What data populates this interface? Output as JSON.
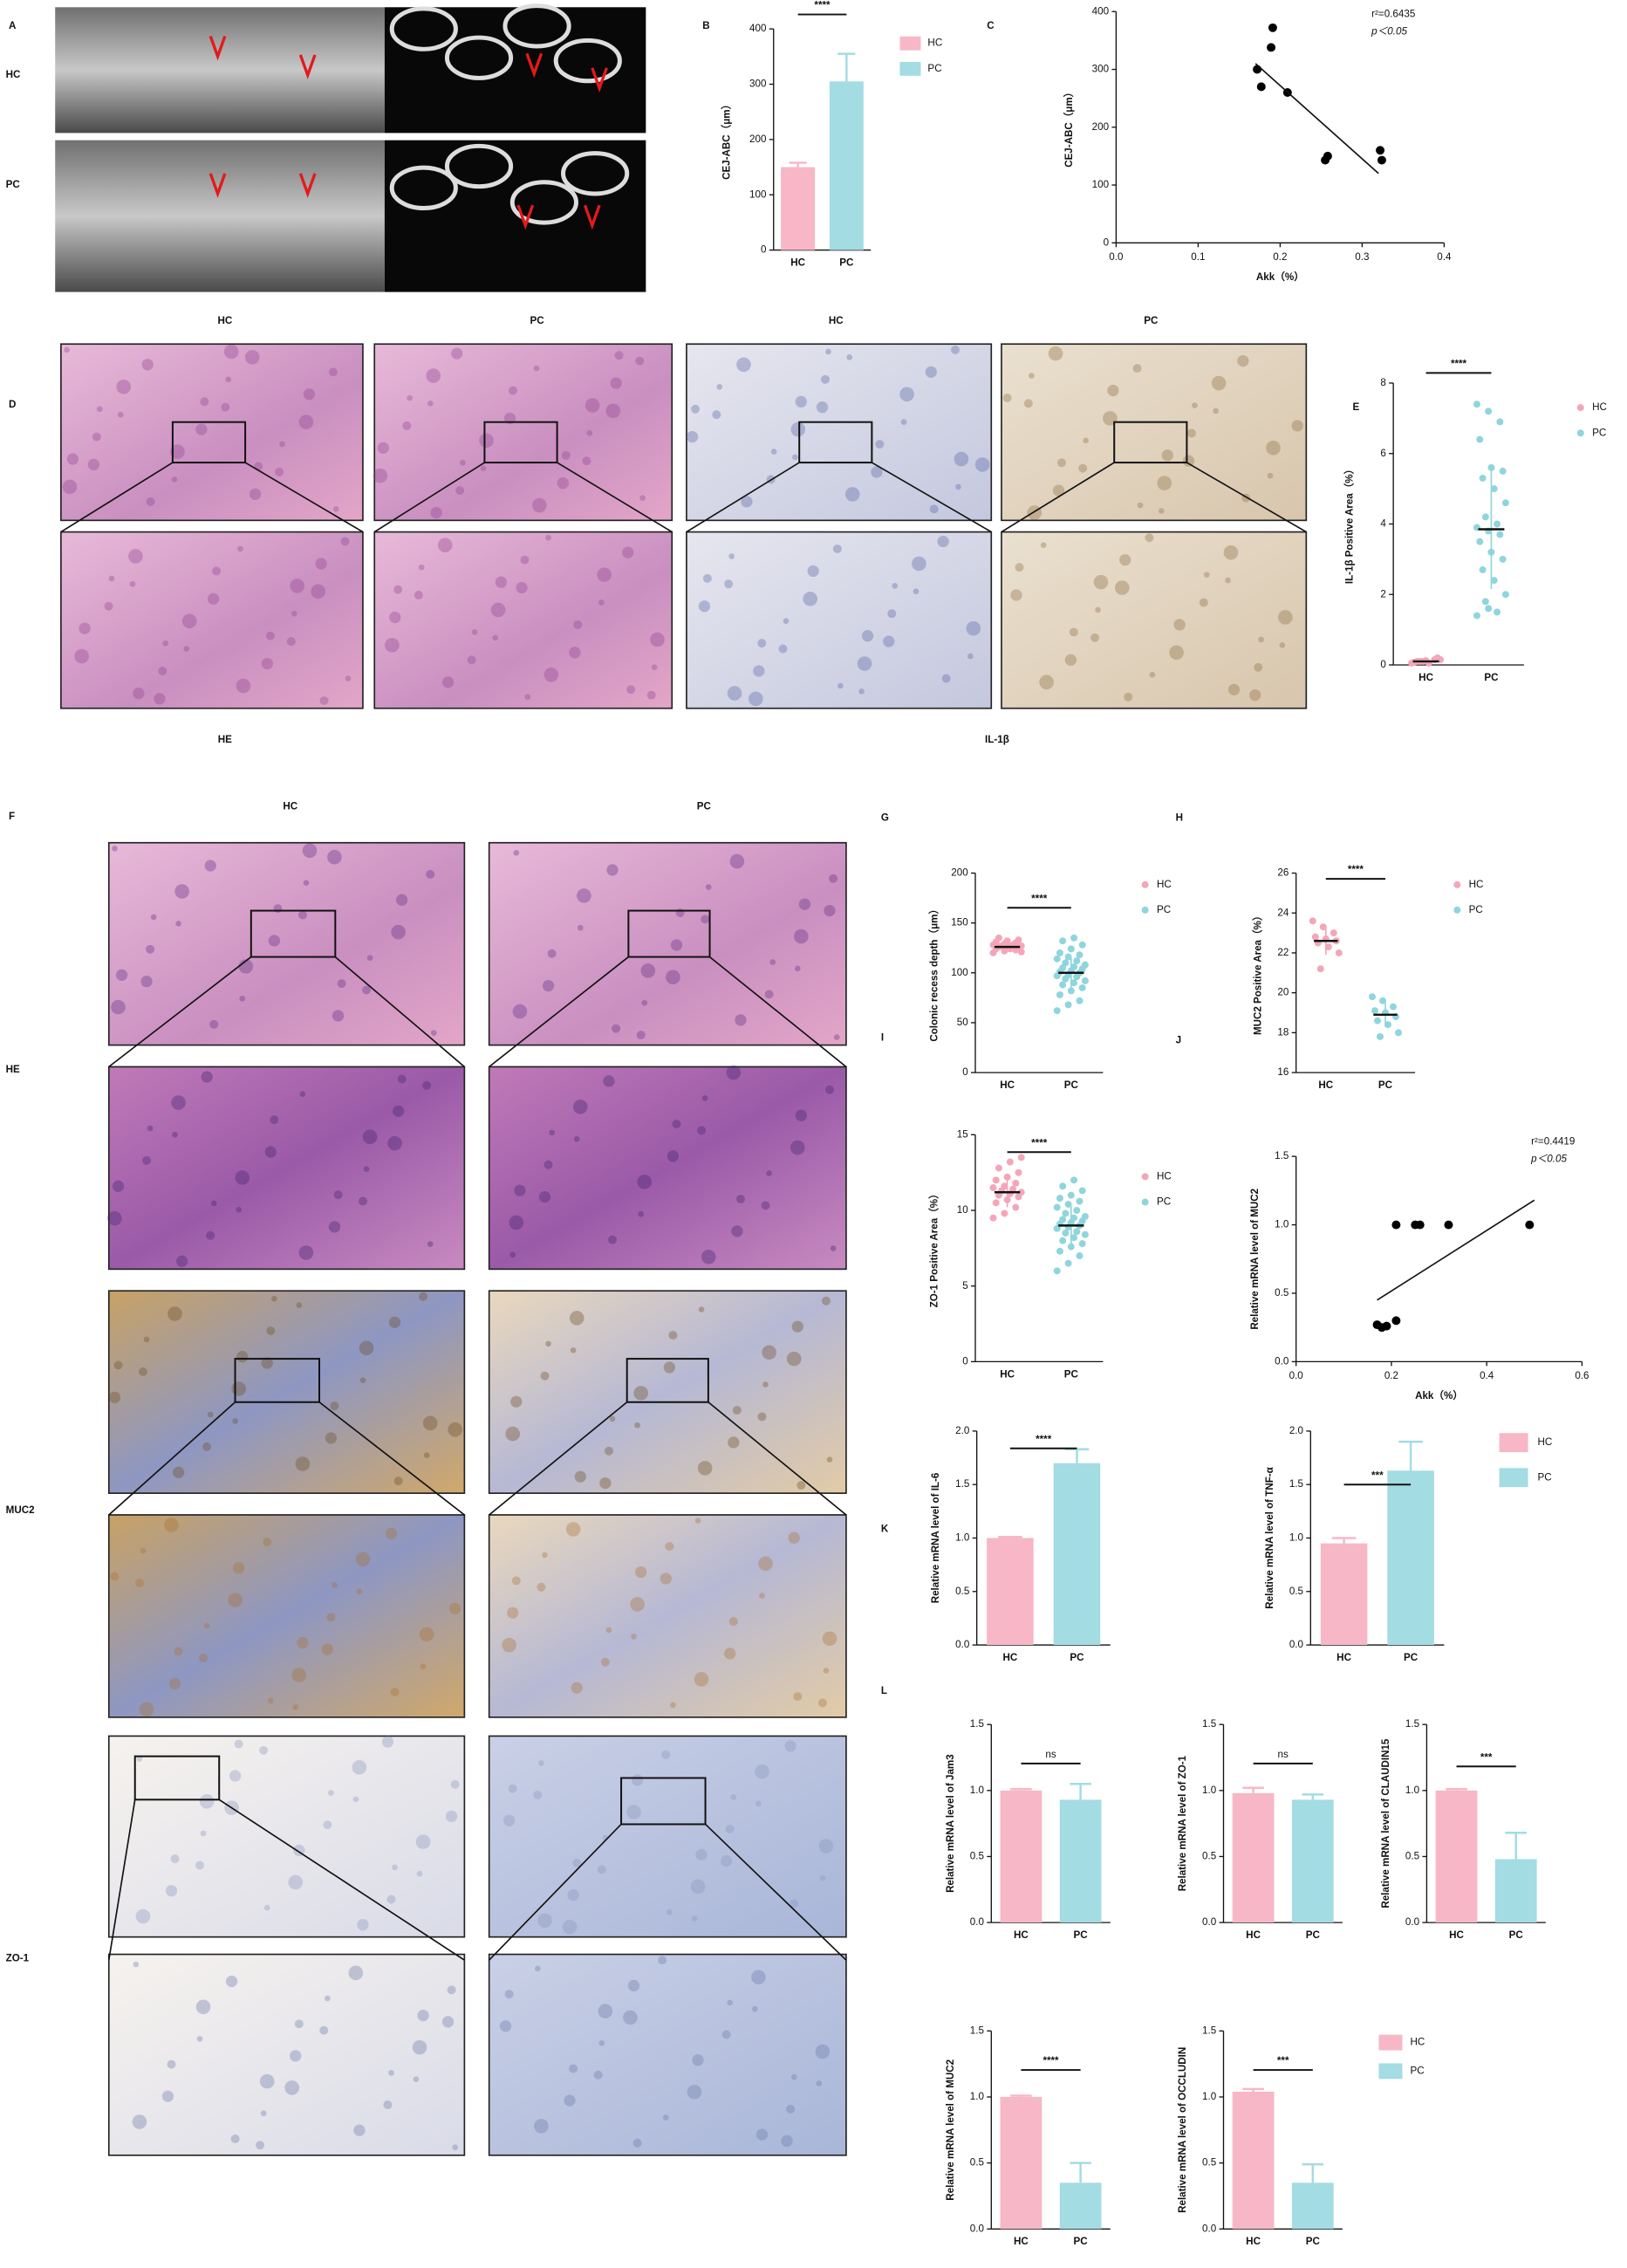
{
  "figure": {
    "panel_letters": [
      "A",
      "B",
      "C",
      "D",
      "E",
      "F",
      "G",
      "H",
      "I",
      "J",
      "K",
      "L"
    ],
    "a_rows": [
      "HC",
      "PC"
    ],
    "d_columns": [
      "HC",
      "PC",
      "HC",
      "PC"
    ],
    "d_stains": [
      "HE",
      "IL-1β"
    ],
    "f_columns": [
      "HC",
      "PC"
    ],
    "f_rows": [
      "HE",
      "MUC2",
      "ZO-1"
    ]
  },
  "chart_data": [
    {
      "type": "bar",
      "y_label": "CEJ-ABC（μm）",
      "categories": [
        "HC",
        "PC"
      ],
      "ylim": [
        0,
        400
      ],
      "yticks": [
        0,
        100,
        200,
        300,
        400
      ],
      "significance": "****",
      "legend": true,
      "series": [
        {
          "name": "HC",
          "color": "#f7b7c6",
          "values": [
            150,
            null
          ],
          "errors": [
            8,
            null
          ]
        },
        {
          "name": "PC",
          "color": "#a3dce2",
          "values": [
            null,
            305
          ],
          "errors": [
            null,
            50
          ]
        }
      ]
    },
    {
      "type": "scatter",
      "y_label": "CEJ-ABC（μm）",
      "x_label": "Akk（%）",
      "xlim": [
        0,
        0.4
      ],
      "xticks": [
        {
          "value": 0,
          "label": "0.0"
        },
        0.1,
        0.2,
        0.3,
        0.4
      ],
      "ylim": [
        0,
        400
      ],
      "yticks": [
        0,
        100,
        200,
        300,
        400
      ],
      "annotations": [
        "r²=0.6435",
        "p＜0.05"
      ],
      "series": [
        {
          "color": "#000000",
          "x": [
            0.172,
            0.191,
            0.189,
            0.177,
            0.209,
            0.255,
            0.258,
            0.322,
            0.324
          ],
          "y": [
            300,
            372,
            338,
            270,
            260,
            143,
            150,
            160,
            143
          ]
        }
      ],
      "fit_x": [
        0.17,
        0.32
      ],
      "fit_y": [
        310,
        120
      ]
    },
    {
      "type": "strip",
      "y_label": "IL-1β Positive Area（%）",
      "categories": [
        "HC",
        "PC"
      ],
      "ylim": [
        0,
        8
      ],
      "yticks": [
        0,
        2,
        4,
        6,
        8
      ],
      "significance": "****",
      "legend": true,
      "series": [
        {
          "name": "HC",
          "color": "#f4a6b8",
          "values": [
            0.05,
            0.1,
            0.15,
            0.08,
            0.12,
            0.2,
            0.1,
            0.05,
            0.15,
            0.1
          ],
          "mean": 0.1,
          "sd": 0.05
        },
        {
          "name": "PC",
          "color": "#8fd5dd",
          "values": [
            7.4,
            7.2,
            6.9,
            6.4,
            5.6,
            5.5,
            5.3,
            5.0,
            4.6,
            4.2,
            4.0,
            3.9,
            3.8,
            3.7,
            3.5,
            3.2,
            3.0,
            2.7,
            2.4,
            2.0,
            1.8,
            1.5,
            1.4,
            1.6
          ],
          "mean": 3.85,
          "sd": 1.7
        }
      ]
    },
    {
      "type": "strip",
      "y_label": "Colonic recess depth（μm）",
      "categories": [
        "HC",
        "PC"
      ],
      "ylim": [
        0,
        200
      ],
      "yticks": [
        0,
        50,
        100,
        150,
        200
      ],
      "significance": "****",
      "legend": true,
      "series": [
        {
          "name": "HC",
          "color": "#f4a6b8",
          "values": [
            120,
            122,
            123,
            124,
            125,
            125,
            126,
            126,
            127,
            127,
            128,
            128,
            129,
            130,
            131,
            132,
            133,
            135,
            124,
            121
          ],
          "mean": 126,
          "sd": 4
        },
        {
          "name": "PC",
          "color": "#8fd5dd",
          "values": [
            62,
            68,
            72,
            78,
            82,
            85,
            88,
            90,
            92,
            94,
            96,
            97,
            98,
            100,
            101,
            102,
            104,
            105,
            106,
            108,
            110,
            112,
            114,
            116,
            118,
            120,
            124,
            128,
            132,
            135
          ],
          "mean": 100,
          "sd": 15
        }
      ]
    },
    {
      "type": "strip",
      "y_label": "MUC2 Positive Area（%）",
      "categories": [
        "HC",
        "PC"
      ],
      "ylim": [
        16,
        26
      ],
      "yticks": [
        16,
        18,
        20,
        22,
        24,
        26
      ],
      "significance": "****",
      "legend": true,
      "series": [
        {
          "name": "HC",
          "color": "#f4a6b8",
          "values": [
            23.6,
            23.3,
            23.0,
            22.8,
            22.7,
            22.6,
            22.5,
            22.3,
            22.0,
            21.2
          ],
          "mean": 22.6,
          "sd": 0.7
        },
        {
          "name": "PC",
          "color": "#8fd5dd",
          "values": [
            19.8,
            19.6,
            19.3,
            19.1,
            19.0,
            18.8,
            18.6,
            18.4,
            18.0,
            17.8
          ],
          "mean": 18.9,
          "sd": 0.6
        }
      ]
    },
    {
      "type": "strip",
      "y_label": "ZO-1 Positive Area（%）",
      "categories": [
        "HC",
        "PC"
      ],
      "ylim": [
        0,
        15
      ],
      "yticks": [
        0,
        5,
        10,
        15
      ],
      "significance": "****",
      "legend": true,
      "series": [
        {
          "name": "HC",
          "color": "#f4a6b8",
          "values": [
            9.5,
            9.8,
            10.2,
            10.5,
            10.7,
            10.9,
            11.0,
            11.1,
            11.2,
            11.3,
            11.4,
            11.5,
            11.6,
            11.8,
            12.0,
            12.2,
            12.5,
            12.8,
            13.2,
            13.5
          ],
          "mean": 11.2,
          "sd": 1.0
        },
        {
          "name": "PC",
          "color": "#8fd5dd",
          "values": [
            6.0,
            6.5,
            7.0,
            7.3,
            7.6,
            7.8,
            8.0,
            8.2,
            8.4,
            8.5,
            8.6,
            8.8,
            8.9,
            9.0,
            9.1,
            9.2,
            9.3,
            9.4,
            9.5,
            9.6,
            9.8,
            10.0,
            10.2,
            10.4,
            10.6,
            10.8,
            11.0,
            11.3,
            11.6,
            12.0
          ],
          "mean": 9.0,
          "sd": 1.3
        }
      ]
    },
    {
      "type": "scatter",
      "y_label": "Relative mRNA level of MUC2",
      "x_label": "Akk（%）",
      "xlim": [
        0,
        0.6
      ],
      "xticks": [
        {
          "value": 0,
          "label": "0.0"
        },
        0.2,
        0.4,
        0.6
      ],
      "ylim": [
        0,
        1.5
      ],
      "yticks": [
        {
          "value": 0,
          "label": "0.0"
        },
        0.5,
        {
          "value": 1,
          "label": "1.0"
        },
        1.5
      ],
      "annotations": [
        "r²=0.4419",
        "p＜0.05"
      ],
      "series": [
        {
          "color": "#000000",
          "x": [
            0.17,
            0.18,
            0.19,
            0.21,
            0.21,
            0.25,
            0.26,
            0.32,
            0.49
          ],
          "y": [
            0.27,
            0.25,
            0.26,
            0.3,
            1.0,
            1.0,
            1.0,
            1.0,
            1.0
          ]
        }
      ],
      "fit_x": [
        0.17,
        0.5
      ],
      "fit_y": [
        0.45,
        1.18
      ]
    },
    {
      "type": "bar",
      "y_label": "Relative mRNA level of IL-6",
      "categories": [
        "HC",
        "PC"
      ],
      "ylim": [
        0,
        2
      ],
      "yticks": [
        {
          "value": 0,
          "label": "0.0"
        },
        0.5,
        {
          "value": 1,
          "label": "1.0"
        },
        1.5,
        {
          "value": 2,
          "label": "2.0"
        }
      ],
      "significance": "****",
      "legend": false,
      "series": [
        {
          "name": "HC",
          "color": "#f7b7c6",
          "values": [
            1.0,
            null
          ],
          "errors": [
            0.01,
            null
          ]
        },
        {
          "name": "PC",
          "color": "#a3dce2",
          "values": [
            null,
            1.7
          ],
          "errors": [
            null,
            0.13
          ]
        }
      ]
    },
    {
      "type": "bar",
      "y_label": "Relative mRNA level of TNF-α",
      "categories": [
        "HC",
        "PC"
      ],
      "ylim": [
        0,
        2
      ],
      "yticks": [
        {
          "value": 0,
          "label": "0.0"
        },
        0.5,
        {
          "value": 1,
          "label": "1.0"
        },
        1.5,
        {
          "value": 2,
          "label": "2.0"
        }
      ],
      "significance": "***",
      "legend": true,
      "series": [
        {
          "name": "HC",
          "color": "#f7b7c6",
          "values": [
            0.95,
            null
          ],
          "errors": [
            0.05,
            null
          ]
        },
        {
          "name": "PC",
          "color": "#a3dce2",
          "values": [
            null,
            1.63
          ],
          "errors": [
            null,
            0.27
          ]
        }
      ]
    },
    {
      "type": "bar",
      "y_label": "Relative mRNA level of Jam3",
      "categories": [
        "HC",
        "PC"
      ],
      "ylim": [
        0,
        1.5
      ],
      "yticks": [
        {
          "value": 0,
          "label": "0.0"
        },
        0.5,
        {
          "value": 1,
          "label": "1.0"
        },
        1.5
      ],
      "significance": "ns",
      "legend": false,
      "series": [
        {
          "name": "HC",
          "color": "#f7b7c6",
          "values": [
            1.0,
            null
          ],
          "errors": [
            0.01,
            null
          ]
        },
        {
          "name": "PC",
          "color": "#a3dce2",
          "values": [
            null,
            0.93
          ],
          "errors": [
            null,
            0.12
          ]
        }
      ]
    },
    {
      "type": "bar",
      "y_label": "Relative mRNA level of ZO-1",
      "categories": [
        "HC",
        "PC"
      ],
      "ylim": [
        0,
        1.5
      ],
      "yticks": [
        {
          "value": 0,
          "label": "0.0"
        },
        0.5,
        {
          "value": 1,
          "label": "1.0"
        },
        1.5
      ],
      "significance": "ns",
      "legend": false,
      "series": [
        {
          "name": "HC",
          "color": "#f7b7c6",
          "values": [
            0.98,
            null
          ],
          "errors": [
            0.04,
            null
          ]
        },
        {
          "name": "PC",
          "color": "#a3dce2",
          "values": [
            null,
            0.93
          ],
          "errors": [
            null,
            0.04
          ]
        }
      ]
    },
    {
      "type": "bar",
      "y_label": "Relative mRNA level of CLAUDIN15",
      "categories": [
        "HC",
        "PC"
      ],
      "ylim": [
        0,
        1.5
      ],
      "yticks": [
        {
          "value": 0,
          "label": "0.0"
        },
        0.5,
        {
          "value": 1,
          "label": "1.0"
        },
        1.5
      ],
      "significance": "***",
      "legend": false,
      "series": [
        {
          "name": "HC",
          "color": "#f7b7c6",
          "values": [
            1.0,
            null
          ],
          "errors": [
            0.01,
            null
          ]
        },
        {
          "name": "PC",
          "color": "#a3dce2",
          "values": [
            null,
            0.48
          ],
          "errors": [
            null,
            0.2
          ]
        }
      ]
    },
    {
      "type": "bar",
      "y_label": "Relative mRNA level of MUC2",
      "categories": [
        "HC",
        "PC"
      ],
      "ylim": [
        0,
        1.5
      ],
      "yticks": [
        {
          "value": 0,
          "label": "0.0"
        },
        0.5,
        {
          "value": 1,
          "label": "1.0"
        },
        1.5
      ],
      "significance": "****",
      "legend": false,
      "series": [
        {
          "name": "HC",
          "color": "#f7b7c6",
          "values": [
            1.0,
            null
          ],
          "errors": [
            0.01,
            null
          ]
        },
        {
          "name": "PC",
          "color": "#a3dce2",
          "values": [
            null,
            0.35
          ],
          "errors": [
            null,
            0.15
          ]
        }
      ]
    },
    {
      "type": "bar",
      "y_label": "Relative mRNA level of OCCLUDIN",
      "categories": [
        "HC",
        "PC"
      ],
      "ylim": [
        0,
        1.5
      ],
      "yticks": [
        {
          "value": 0,
          "label": "0.0"
        },
        0.5,
        {
          "value": 1,
          "label": "1.0"
        },
        1.5
      ],
      "significance": "***",
      "legend": true,
      "series": [
        {
          "name": "HC",
          "color": "#f7b7c6",
          "values": [
            1.04,
            null
          ],
          "errors": [
            0.02,
            null
          ]
        },
        {
          "name": "PC",
          "color": "#a3dce2",
          "values": [
            null,
            0.35
          ],
          "errors": [
            null,
            0.14
          ]
        }
      ]
    }
  ]
}
